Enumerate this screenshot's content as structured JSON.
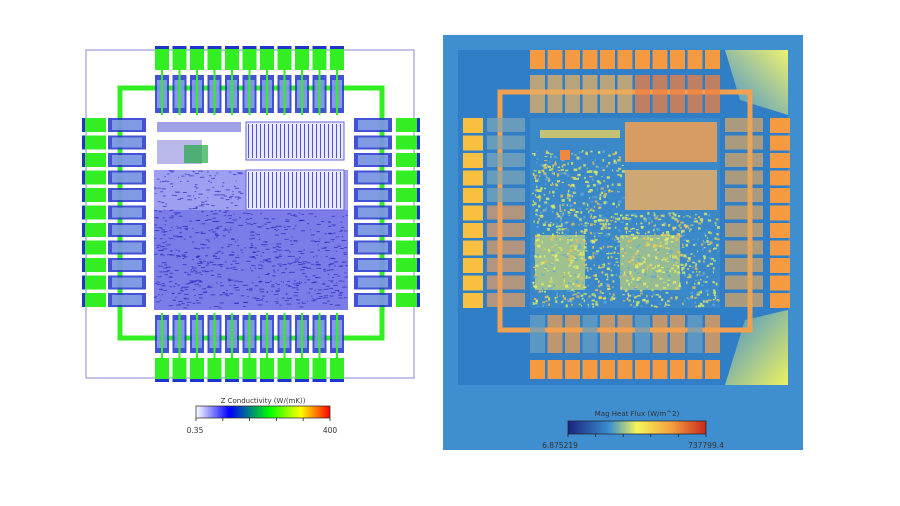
{
  "left_panel": {
    "colorbar": {
      "title": "Z Conductivity (W/(mK))",
      "min_label": "0.35",
      "max_label": "400",
      "colors": [
        "#ffffff",
        "#0000ff",
        "#00ff00",
        "#ffff00",
        "#ff0000"
      ]
    },
    "colors": {
      "pad": "#33ee22",
      "metal": "#2233cc",
      "core": "#4a4ae0",
      "background": "#ffffff"
    }
  },
  "right_panel": {
    "colorbar": {
      "title": "Mag Heat Flux (W/m^2)",
      "min_label": "6.875219",
      "max_label": "737799.4",
      "colors": [
        "#1a237e",
        "#3a8fd0",
        "#f5f55a",
        "#f5a040",
        "#c8281e"
      ]
    },
    "colors": {
      "background": "#3f8fd0",
      "pad": "#f59a40",
      "side_pad": "#f8c040",
      "corner": "#eef060"
    }
  }
}
